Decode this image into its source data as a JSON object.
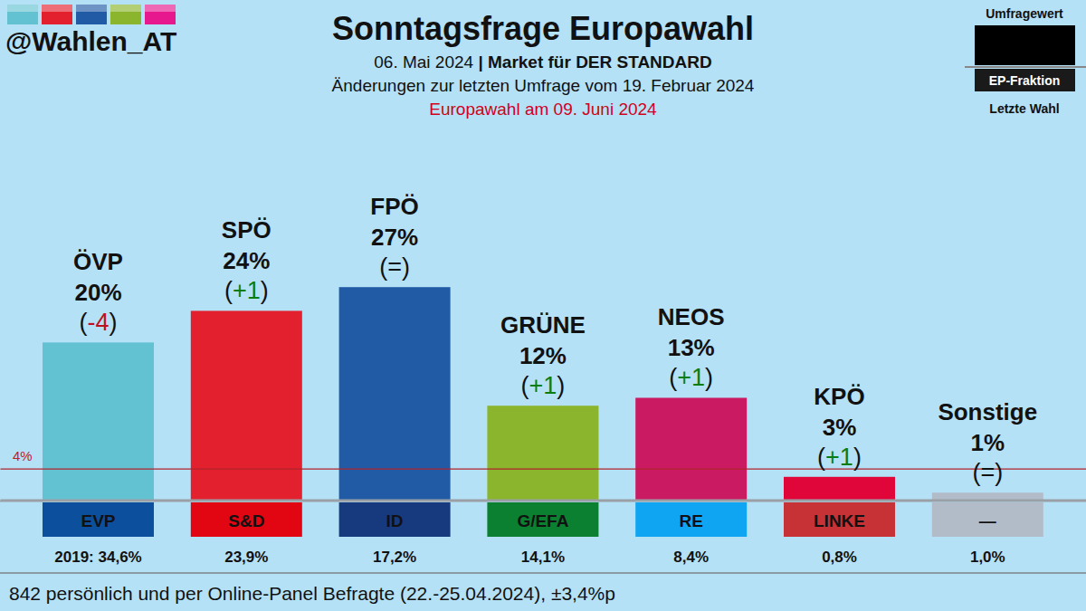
{
  "chart_data": {
    "type": "bar",
    "title": "Sonntagsfrage Europawahl",
    "handle": "@Wahlen_AT",
    "subtitle": [
      "06. Mai 2024",
      "| Market für DER STANDARD"
    ],
    "comparison_note": "Änderungen zur letzten Umfrage vom 19. Februar 2024",
    "election_note": "Europawahl am 09. Juni 2024",
    "footer": "842 persönlich und per Online-Panel Befragte (22.-25.04.2024), ±3,4%p",
    "key": {
      "top": "Umfragewert",
      "middle": "EP-Fraktion",
      "bottom": "Letzte Wahl"
    },
    "categories": [
      "ÖVP",
      "SPÖ",
      "FPÖ",
      "GRÜNE",
      "NEOS",
      "KPÖ",
      "Sonstige"
    ],
    "values": [
      20,
      24,
      27,
      12,
      13,
      3,
      1
    ],
    "value_labels": [
      "20%",
      "24%",
      "27%",
      "12%",
      "13%",
      "3%",
      "1%"
    ],
    "colors": [
      "#63c2d2",
      "#e3212e",
      "#215ba6",
      "#8ab52c",
      "#c91a62",
      "#e0063a",
      "#b2bcc9"
    ],
    "changes": {
      "values": [
        -4,
        1,
        0,
        1,
        1,
        1,
        0
      ],
      "value_labels": [
        "(-4)",
        "(+1)",
        "(=)",
        "(+1)",
        "(+1)",
        "(+1)",
        "(=)"
      ]
    },
    "groups": {
      "labels": [
        "EVP",
        "S&D",
        "ID",
        "G/EFA",
        "RE",
        "LINKE",
        "—"
      ],
      "colors": [
        "#0c4f9c",
        "#e20613",
        "#173a7e",
        "#0a8030",
        "#0fa5f2",
        "#c73236",
        "#b2bcc9"
      ]
    },
    "last_election": {
      "values": [
        34.6,
        23.9,
        17.2,
        14.1,
        8.4,
        0.8,
        1.0
      ],
      "value_labels": [
        "2019: 34,6%",
        "23,9%",
        "17,2%",
        "14,1%",
        "8,4%",
        "0,8%",
        "1,0%"
      ]
    },
    "threshold": {
      "value": 4,
      "label": "4%"
    },
    "ylim": [
      0,
      30
    ],
    "tick_labels": false,
    "data_labels": true
  }
}
